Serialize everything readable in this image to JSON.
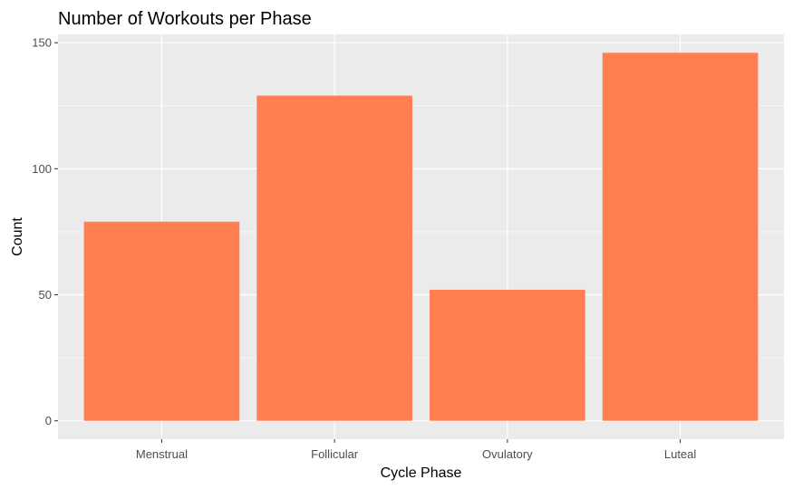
{
  "chart_data": {
    "type": "bar",
    "title": "Number of Workouts per Phase",
    "xlabel": "Cycle Phase",
    "ylabel": "Count",
    "categories": [
      "Menstrual",
      "Follicular",
      "Ovulatory",
      "Luteal"
    ],
    "values": [
      79,
      129,
      52,
      146
    ],
    "ylim": [
      -7.3,
      153.3
    ],
    "yticks": [
      0,
      50,
      100,
      150
    ],
    "grid": true,
    "legend": "none",
    "colors": {
      "bar": "#FF7F50",
      "panel": "#EBEBEB",
      "grid": "#FFFFFF"
    }
  }
}
